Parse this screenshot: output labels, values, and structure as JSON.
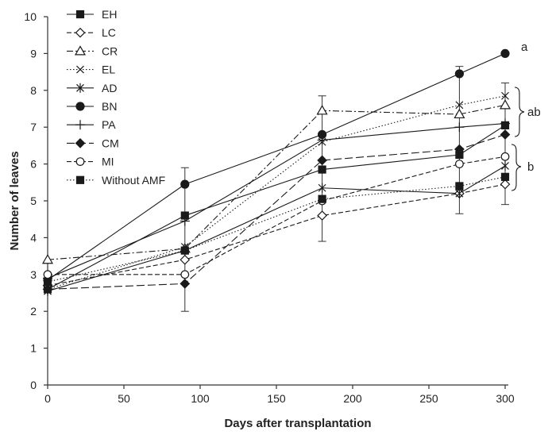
{
  "chart_data": {
    "type": "line",
    "xlabel": "Days after transplantation",
    "ylabel": "Number of leaves",
    "xlim": [
      0,
      300
    ],
    "ylim": [
      0,
      10
    ],
    "xticks": [
      0,
      50,
      100,
      150,
      200,
      250,
      300
    ],
    "yticks": [
      0,
      1,
      2,
      3,
      4,
      5,
      6,
      7,
      8,
      9,
      10
    ],
    "grid": false,
    "legend_position": "top-left",
    "x": [
      0,
      90,
      180,
      270,
      300
    ],
    "series": [
      {
        "name": "EH",
        "marker": "square-filled",
        "dash": "solid",
        "values": [
          2.6,
          4.6,
          5.85,
          6.25,
          7.05
        ]
      },
      {
        "name": "LC",
        "marker": "diamond-open",
        "dash": "dashed",
        "values": [
          2.7,
          3.4,
          4.6,
          5.2,
          5.45
        ]
      },
      {
        "name": "CR",
        "marker": "triangle-open",
        "dash": "dashdot",
        "values": [
          3.4,
          3.7,
          7.45,
          7.35,
          7.6
        ]
      },
      {
        "name": "EL",
        "marker": "x",
        "dash": "dotted",
        "values": [
          2.6,
          3.75,
          6.6,
          7.6,
          7.85
        ]
      },
      {
        "name": "AD",
        "marker": "star",
        "dash": "solid",
        "values": [
          2.55,
          3.65,
          5.35,
          5.2,
          5.95
        ]
      },
      {
        "name": "BN",
        "marker": "circle-filled",
        "dash": "solid",
        "values": [
          2.85,
          5.45,
          6.8,
          8.45,
          9.0
        ]
      },
      {
        "name": "PA",
        "marker": "plus",
        "dash": "solid",
        "values": [
          2.9,
          4.45,
          6.65,
          7.0,
          7.1
        ]
      },
      {
        "name": "CM",
        "marker": "diamond-filled",
        "dash": "longdash",
        "values": [
          2.6,
          2.75,
          6.1,
          6.4,
          6.8
        ]
      },
      {
        "name": "MI",
        "marker": "circle-open",
        "dash": "dashed",
        "values": [
          3.0,
          3.0,
          5.0,
          6.0,
          6.2
        ]
      },
      {
        "name": "Without AMF",
        "marker": "square-filled",
        "dash": "dotted",
        "values": [
          2.8,
          3.65,
          5.05,
          5.4,
          5.65
        ]
      }
    ],
    "error_bars": [
      {
        "x": 90,
        "low": 2.0,
        "high": 5.9
      },
      {
        "x": 180,
        "low": 3.9,
        "high": 7.85
      },
      {
        "x": 270,
        "low": 4.65,
        "high": 8.65
      },
      {
        "x": 300,
        "low": 4.9,
        "high": 8.2
      }
    ],
    "group_labels": [
      {
        "text": "a",
        "y": 9.2
      },
      {
        "text": "ab",
        "y": 7.3
      },
      {
        "text": "b",
        "y": 5.9
      }
    ]
  }
}
